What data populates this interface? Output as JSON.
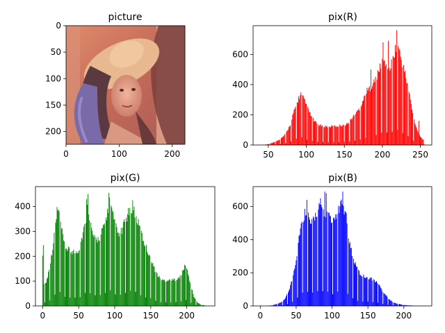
{
  "chart_data": [
    {
      "type": "image",
      "title": "picture",
      "xlim": [
        0,
        224
      ],
      "ylim": [
        224,
        0
      ],
      "xticks": [
        0,
        100,
        200
      ],
      "yticks": [
        0,
        50,
        100,
        150,
        200
      ],
      "content": "portrait photograph of a woman wearing a wide-brimmed hat with a purple feather, warm reddish tones"
    },
    {
      "type": "bar",
      "title": "pix(R)",
      "color": "#ff0000",
      "xlim": [
        30,
        265
      ],
      "ylim": [
        0,
        790
      ],
      "xticks": [
        50,
        100,
        150,
        200,
        250
      ],
      "yticks": [
        0,
        200,
        400,
        600
      ],
      "x_range": [
        43,
        255
      ],
      "shape_points": [
        [
          43,
          1
        ],
        [
          48,
          4
        ],
        [
          52,
          10
        ],
        [
          55,
          15
        ],
        [
          60,
          25
        ],
        [
          65,
          40
        ],
        [
          70,
          60
        ],
        [
          75,
          100
        ],
        [
          80,
          160
        ],
        [
          83,
          220
        ],
        [
          86,
          270
        ],
        [
          90,
          330
        ],
        [
          93,
          360
        ],
        [
          96,
          330
        ],
        [
          100,
          280
        ],
        [
          105,
          220
        ],
        [
          110,
          170
        ],
        [
          115,
          145
        ],
        [
          120,
          135
        ],
        [
          130,
          130
        ],
        [
          140,
          132
        ],
        [
          150,
          145
        ],
        [
          155,
          150
        ],
        [
          160,
          190
        ],
        [
          165,
          220
        ],
        [
          170,
          260
        ],
        [
          175,
          320
        ],
        [
          180,
          380
        ],
        [
          185,
          410
        ],
        [
          190,
          450
        ],
        [
          195,
          510
        ],
        [
          200,
          600
        ],
        [
          205,
          580
        ],
        [
          210,
          540
        ],
        [
          215,
          640
        ],
        [
          220,
          720
        ],
        [
          225,
          600
        ],
        [
          230,
          500
        ],
        [
          235,
          380
        ],
        [
          240,
          220
        ],
        [
          245,
          120
        ],
        [
          250,
          60
        ],
        [
          255,
          30
        ]
      ],
      "spikes": [
        [
          201,
          680
        ],
        [
          208,
          690
        ],
        [
          219,
          760
        ],
        [
          222,
          640
        ],
        [
          197,
          540
        ],
        [
          185,
          500
        ],
        [
          256,
          210
        ],
        [
          248,
          160
        ]
      ]
    },
    {
      "type": "bar",
      "title": "pix(G)",
      "color": "#008000",
      "xlim": [
        -10,
        239
      ],
      "ylim": [
        0,
        480
      ],
      "xticks": [
        0,
        50,
        100,
        150,
        200
      ],
      "yticks": [
        0,
        100,
        200,
        300,
        400
      ],
      "x_range": [
        0,
        225
      ],
      "shape_points": [
        [
          0,
          230
        ],
        [
          2,
          100
        ],
        [
          5,
          100
        ],
        [
          10,
          170
        ],
        [
          15,
          270
        ],
        [
          18,
          350
        ],
        [
          20,
          410
        ],
        [
          23,
          400
        ],
        [
          26,
          330
        ],
        [
          30,
          260
        ],
        [
          35,
          240
        ],
        [
          40,
          235
        ],
        [
          45,
          230
        ],
        [
          50,
          240
        ],
        [
          55,
          300
        ],
        [
          60,
          370
        ],
        [
          63,
          440
        ],
        [
          66,
          360
        ],
        [
          70,
          300
        ],
        [
          75,
          280
        ],
        [
          80,
          300
        ],
        [
          85,
          340
        ],
        [
          90,
          400
        ],
        [
          93,
          450
        ],
        [
          96,
          400
        ],
        [
          100,
          360
        ],
        [
          105,
          300
        ],
        [
          110,
          320
        ],
        [
          115,
          370
        ],
        [
          120,
          400
        ],
        [
          125,
          430
        ],
        [
          130,
          380
        ],
        [
          135,
          330
        ],
        [
          140,
          280
        ],
        [
          145,
          240
        ],
        [
          150,
          210
        ],
        [
          155,
          160
        ],
        [
          160,
          130
        ],
        [
          165,
          110
        ],
        [
          170,
          110
        ],
        [
          180,
          110
        ],
        [
          190,
          120
        ],
        [
          195,
          150
        ],
        [
          198,
          180
        ],
        [
          200,
          160
        ],
        [
          205,
          100
        ],
        [
          210,
          40
        ],
        [
          215,
          15
        ],
        [
          220,
          5
        ],
        [
          225,
          2
        ]
      ],
      "spikes": [
        [
          1,
          245
        ],
        [
          63,
          450
        ],
        [
          92,
          455
        ],
        [
          125,
          425
        ],
        [
          61,
          430
        ]
      ]
    },
    {
      "type": "bar",
      "title": "pix(B)",
      "color": "#0000ff",
      "xlim": [
        -10,
        239
      ],
      "ylim": [
        0,
        720
      ],
      "xticks": [
        0,
        50,
        100,
        150,
        200
      ],
      "yticks": [
        0,
        200,
        400,
        600
      ],
      "x_range": [
        10,
        225
      ],
      "shape_points": [
        [
          10,
          1
        ],
        [
          15,
          3
        ],
        [
          20,
          8
        ],
        [
          25,
          15
        ],
        [
          30,
          25
        ],
        [
          35,
          50
        ],
        [
          40,
          100
        ],
        [
          45,
          180
        ],
        [
          50,
          300
        ],
        [
          55,
          480
        ],
        [
          60,
          560
        ],
        [
          63,
          620
        ],
        [
          66,
          600
        ],
        [
          70,
          520
        ],
        [
          75,
          560
        ],
        [
          80,
          620
        ],
        [
          85,
          640
        ],
        [
          90,
          600
        ],
        [
          95,
          580
        ],
        [
          100,
          520
        ],
        [
          105,
          560
        ],
        [
          110,
          620
        ],
        [
          115,
          660
        ],
        [
          118,
          600
        ],
        [
          120,
          540
        ],
        [
          125,
          400
        ],
        [
          130,
          300
        ],
        [
          135,
          240
        ],
        [
          140,
          200
        ],
        [
          145,
          190
        ],
        [
          150,
          185
        ],
        [
          155,
          175
        ],
        [
          160,
          160
        ],
        [
          165,
          140
        ],
        [
          170,
          100
        ],
        [
          175,
          70
        ],
        [
          180,
          40
        ],
        [
          185,
          25
        ],
        [
          190,
          15
        ],
        [
          200,
          6
        ],
        [
          210,
          3
        ],
        [
          220,
          1
        ],
        [
          225,
          1
        ]
      ],
      "spikes": [
        [
          65,
          640
        ],
        [
          90,
          690
        ],
        [
          92,
          680
        ],
        [
          115,
          690
        ],
        [
          84,
          650
        ],
        [
          120,
          560
        ]
      ]
    }
  ]
}
